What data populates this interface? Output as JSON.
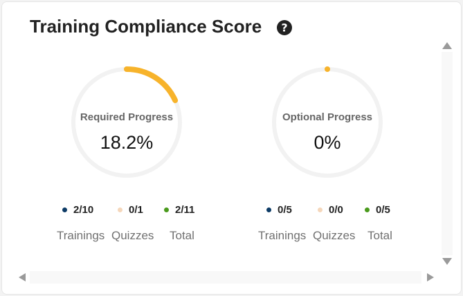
{
  "title": "Training Compliance Score",
  "icons": {
    "help": "question-circle-icon"
  },
  "colors": {
    "progress": "#f7b32b",
    "track": "#f2f2f2",
    "trainings_dot": "#0d3b66",
    "quizzes_dot": "#f5d7bb",
    "total_dot": "#4a9a1c"
  },
  "required": {
    "label": "Required Progress",
    "value": "18.2%",
    "fraction": 0.182,
    "stats": {
      "trainings": "2/10",
      "quizzes": "0/1",
      "total": "2/11"
    }
  },
  "optional": {
    "label": "Optional Progress",
    "value": "0%",
    "fraction": 0,
    "stats": {
      "trainings": "0/5",
      "quizzes": "0/0",
      "total": "0/5"
    }
  },
  "labels": {
    "trainings": "Trainings",
    "quizzes": "Quizzes",
    "total": "Total"
  }
}
